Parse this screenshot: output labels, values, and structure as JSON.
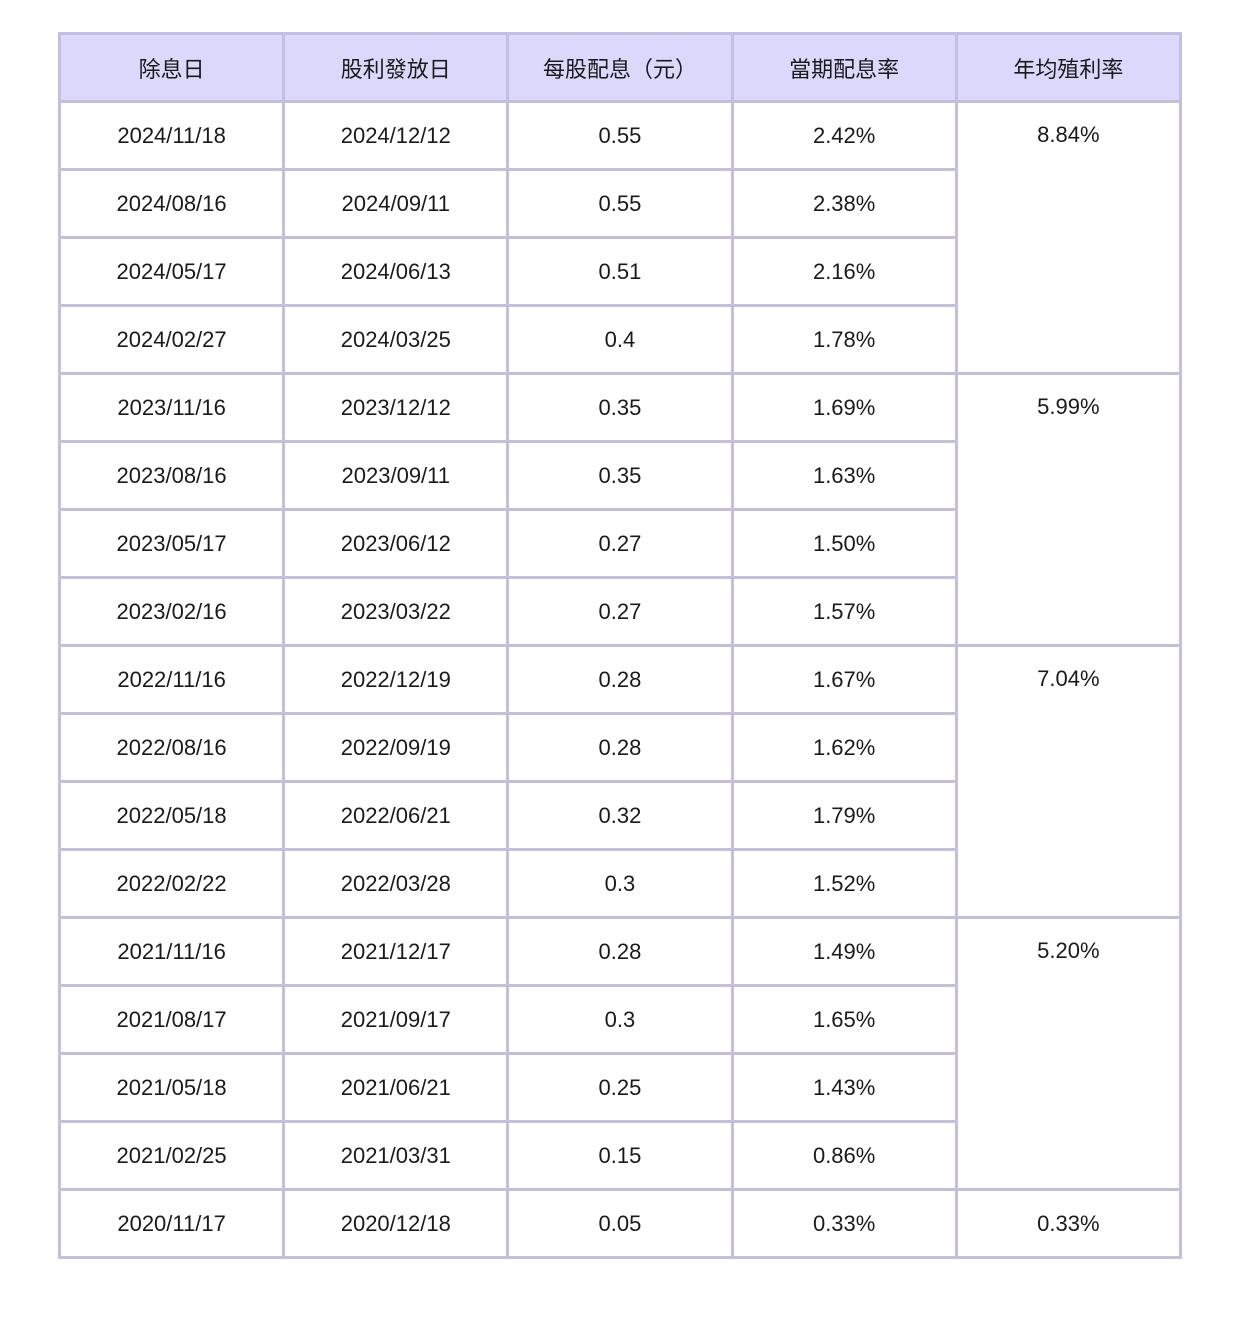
{
  "table": {
    "headers": [
      "除息日",
      "股利發放日",
      "每股配息（元）",
      "當期配息率",
      "年均殖利率"
    ],
    "groups": [
      {
        "annual_yield": "8.84%",
        "rows": [
          [
            "2024/11/18",
            "2024/12/12",
            "0.55",
            "2.42%"
          ],
          [
            "2024/08/16",
            "2024/09/11",
            "0.55",
            "2.38%"
          ],
          [
            "2024/05/17",
            "2024/06/13",
            "0.51",
            "2.16%"
          ],
          [
            "2024/02/27",
            "2024/03/25",
            "0.4",
            "1.78%"
          ]
        ]
      },
      {
        "annual_yield": "5.99%",
        "rows": [
          [
            "2023/11/16",
            "2023/12/12",
            "0.35",
            "1.69%"
          ],
          [
            "2023/08/16",
            "2023/09/11",
            "0.35",
            "1.63%"
          ],
          [
            "2023/05/17",
            "2023/06/12",
            "0.27",
            "1.50%"
          ],
          [
            "2023/02/16",
            "2023/03/22",
            "0.27",
            "1.57%"
          ]
        ]
      },
      {
        "annual_yield": "7.04%",
        "rows": [
          [
            "2022/11/16",
            "2022/12/19",
            "0.28",
            "1.67%"
          ],
          [
            "2022/08/16",
            "2022/09/19",
            "0.28",
            "1.62%"
          ],
          [
            "2022/05/18",
            "2022/06/21",
            "0.32",
            "1.79%"
          ],
          [
            "2022/02/22",
            "2022/03/28",
            "0.3",
            "1.52%"
          ]
        ]
      },
      {
        "annual_yield": "5.20%",
        "rows": [
          [
            "2021/11/16",
            "2021/12/17",
            "0.28",
            "1.49%"
          ],
          [
            "2021/08/17",
            "2021/09/17",
            "0.3",
            "1.65%"
          ],
          [
            "2021/05/18",
            "2021/06/21",
            "0.25",
            "1.43%"
          ],
          [
            "2021/02/25",
            "2021/03/31",
            "0.15",
            "0.86%"
          ]
        ]
      },
      {
        "annual_yield": "0.33%",
        "rows": [
          [
            "2020/11/17",
            "2020/12/18",
            "0.05",
            "0.33%"
          ]
        ]
      }
    ]
  },
  "colors": {
    "header_bg": "#dcd8fb",
    "border": "#c3bfdf"
  }
}
